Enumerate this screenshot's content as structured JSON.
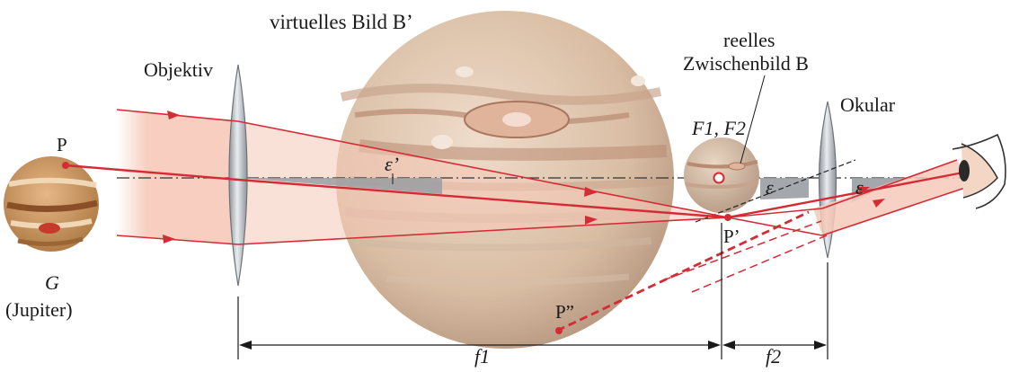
{
  "labels": {
    "virtual_image": "virtuelles Bild B’",
    "objective": "Objektiv",
    "real_image_line1": "reelles",
    "real_image_line2": "Zwischenbild B",
    "eyepiece": "Okular",
    "focal_points": "F1, F2",
    "epsilon_prime": "ε’",
    "epsilon_left": "ε",
    "epsilon_right": "ε",
    "point_p": "P",
    "point_p_prime": "P’",
    "point_p_double_prime": "P”",
    "object_symbol": "G",
    "object_name": "(Jupiter)",
    "f1": "f1",
    "f2": "f2"
  },
  "colors": {
    "ray": "#d42b35",
    "beam": "#f6c9b8",
    "lens": "#b9bec4",
    "axis": "#333333",
    "planet": "#d9b99c"
  }
}
